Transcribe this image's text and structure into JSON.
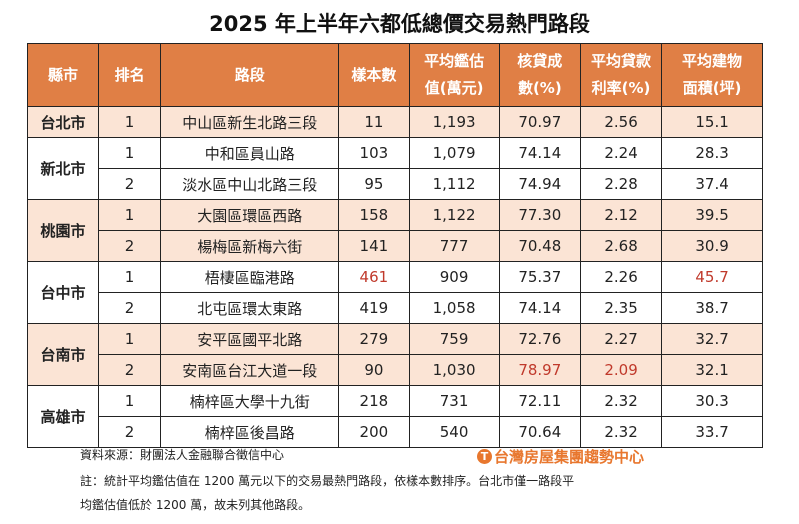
{
  "title": "2025 年上半年六都低總價交易熱門路段",
  "headers": [
    "縣市",
    "排名",
    "路段",
    "樣本數",
    "平均鑑估\n值(萬元)",
    "核貸成\n數(%)",
    "平均貸款\n利率(%)",
    "平均建物\n面積(坪)"
  ],
  "colors": {
    "header_bg": "#e07f45",
    "shade": "#fbe4d5",
    "highlight": "#c0392b"
  },
  "cities": [
    {
      "name": "台北市",
      "rows": [
        {
          "rank": "1",
          "road": "中山區新生北路三段",
          "samples": "11",
          "value": "1,193",
          "loan": "70.97",
          "rate": "2.56",
          "area": "15.1"
        }
      ]
    },
    {
      "name": "新北市",
      "rows": [
        {
          "rank": "1",
          "road": "中和區員山路",
          "samples": "103",
          "value": "1,079",
          "loan": "74.14",
          "rate": "2.24",
          "area": "28.3"
        },
        {
          "rank": "2",
          "road": "淡水區中山北路三段",
          "samples": "95",
          "value": "1,112",
          "loan": "74.94",
          "rate": "2.28",
          "area": "37.4"
        }
      ]
    },
    {
      "name": "桃園市",
      "rows": [
        {
          "rank": "1",
          "road": "大園區環區西路",
          "samples": "158",
          "value": "1,122",
          "loan": "77.30",
          "rate": "2.12",
          "area": "39.5"
        },
        {
          "rank": "2",
          "road": "楊梅區新梅六街",
          "samples": "141",
          "value": "777",
          "loan": "70.48",
          "rate": "2.68",
          "area": "30.9"
        }
      ]
    },
    {
      "name": "台中市",
      "rows": [
        {
          "rank": "1",
          "road": "梧棲區臨港路",
          "samples": "461",
          "value": "909",
          "loan": "75.37",
          "rate": "2.26",
          "area": "45.7",
          "red": [
            "samples",
            "area"
          ]
        },
        {
          "rank": "2",
          "road": "北屯區環太東路",
          "samples": "419",
          "value": "1,058",
          "loan": "74.14",
          "rate": "2.35",
          "area": "38.7"
        }
      ]
    },
    {
      "name": "台南市",
      "rows": [
        {
          "rank": "1",
          "road": "安平區國平北路",
          "samples": "279",
          "value": "759",
          "loan": "72.76",
          "rate": "2.27",
          "area": "32.7"
        },
        {
          "rank": "2",
          "road": "安南區台江大道一段",
          "samples": "90",
          "value": "1,030",
          "loan": "78.97",
          "rate": "2.09",
          "area": "32.1",
          "red": [
            "loan",
            "rate"
          ]
        }
      ]
    },
    {
      "name": "高雄市",
      "rows": [
        {
          "rank": "1",
          "road": "楠梓區大學十九街",
          "samples": "218",
          "value": "731",
          "loan": "72.11",
          "rate": "2.32",
          "area": "30.3"
        },
        {
          "rank": "2",
          "road": "楠梓區後昌路",
          "samples": "200",
          "value": "540",
          "loan": "70.64",
          "rate": "2.32",
          "area": "33.7"
        }
      ]
    }
  ],
  "source": "資料來源：財團法人金融聯合徵信中心",
  "note1": "註：統計平均鑑估值在 1200 萬元以下的交易最熱門路段，依樣本數排序。台北市僅一路段平",
  "note2": "均鑑估值低於 1200 萬，故未列其他路段。",
  "logo": "台灣房屋集團趨勢中心"
}
